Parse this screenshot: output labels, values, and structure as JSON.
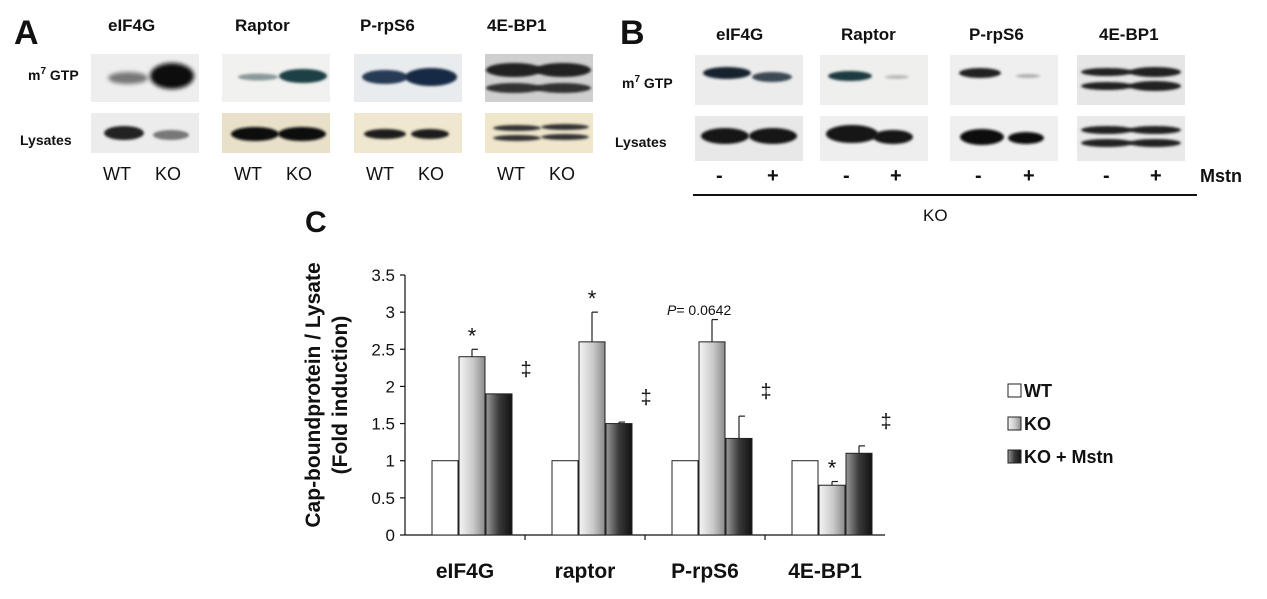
{
  "panel_a": {
    "letter": "A",
    "proteins": [
      "eIF4G",
      "Raptor",
      "P-rpS6",
      "4E-BP1"
    ],
    "row_labels": {
      "m7": "m",
      "m7_sup": "7",
      "gtp": " GTP",
      "lysates": "Lysates"
    },
    "lane_labels": [
      "WT",
      "KO"
    ]
  },
  "panel_b": {
    "letter": "B",
    "proteins": [
      "eIF4G",
      "Raptor",
      "P-rpS6",
      "4E-BP1"
    ],
    "row_labels": {
      "m7": "m",
      "m7_sup": "7",
      "gtp": " GTP",
      "lysates": "Lysates"
    },
    "lane_signs": [
      "-",
      "+"
    ],
    "mstn_label": "Mstn",
    "group_label": "KO"
  },
  "panel_c": {
    "letter": "C",
    "annotation_p_italic": "P",
    "annotation_p_value": "= 0.0642"
  },
  "chart_data": {
    "type": "bar",
    "categories": [
      "eIF4G",
      "raptor",
      "P-rpS6",
      "4E-BP1"
    ],
    "ylabel_line1": "Cap-boundprotein / Lysate",
    "ylabel_line2": "(Fold induction)",
    "ylim": [
      0,
      3.5
    ],
    "yticks": [
      "0",
      "0.5",
      "1",
      "1.5",
      "2",
      "2.5",
      "3",
      "3.5"
    ],
    "legend_position": "right",
    "series": [
      {
        "name": "WT",
        "values": [
          1.0,
          1.0,
          1.0,
          1.0
        ],
        "errors": [
          0,
          0,
          0,
          0
        ],
        "color": "#ffffff"
      },
      {
        "name": "KO",
        "values": [
          2.4,
          2.6,
          2.6,
          0.67
        ],
        "errors": [
          0.1,
          0.4,
          0.3,
          0.05
        ],
        "color": "#b8b8b8"
      },
      {
        "name": "KO + Mstn",
        "values": [
          1.9,
          1.5,
          1.3,
          1.1
        ],
        "errors": [
          0,
          0.02,
          0.3,
          0.1
        ],
        "color": "#555555"
      }
    ],
    "markers": [
      {
        "group": 0,
        "series": 1,
        "text": "*"
      },
      {
        "group": 0,
        "series": 2,
        "text": "‡"
      },
      {
        "group": 1,
        "series": 1,
        "text": "*"
      },
      {
        "group": 1,
        "series": 2,
        "text": "‡"
      },
      {
        "group": 2,
        "series": 2,
        "text": "‡"
      },
      {
        "group": 3,
        "series": 1,
        "text": "*"
      },
      {
        "group": 3,
        "series": 2,
        "text": "‡"
      }
    ]
  }
}
